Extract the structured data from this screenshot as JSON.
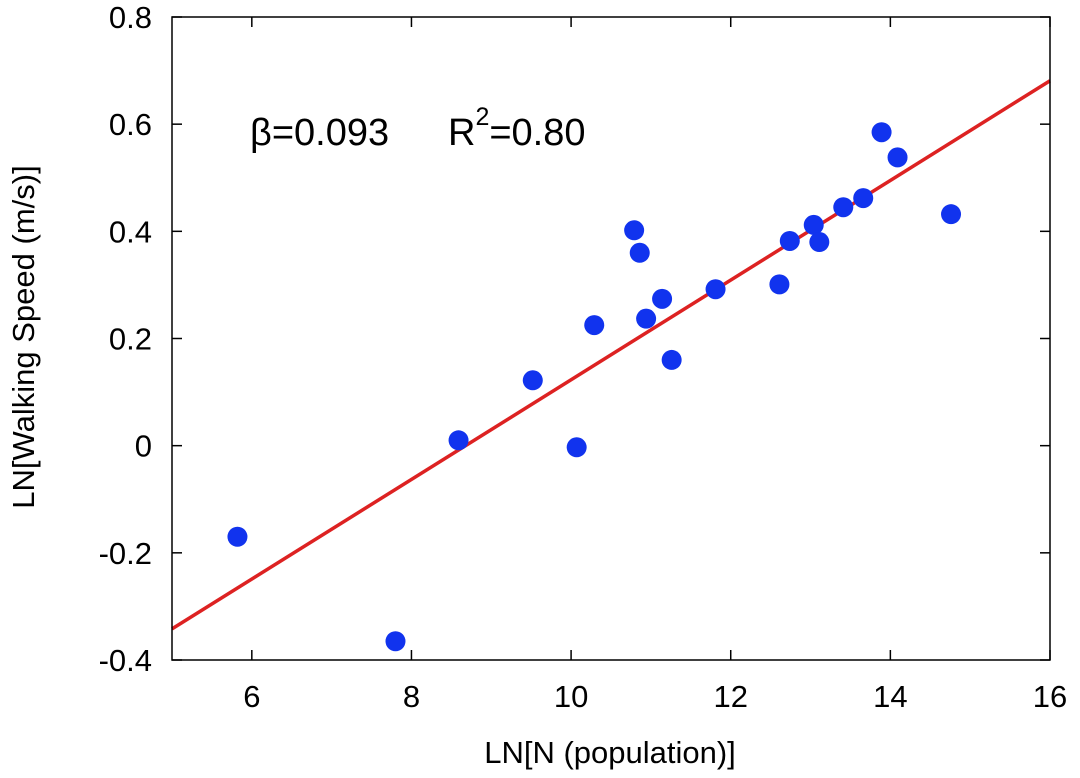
{
  "chart_data": {
    "type": "scatter",
    "xlabel": "LN[N (population)]",
    "ylabel": "LN[Walking Speed (m/s)]",
    "xlim": [
      5,
      16
    ],
    "ylim": [
      -0.4,
      0.8
    ],
    "xticks": [
      "6",
      "8",
      "10",
      "12",
      "14",
      "16"
    ],
    "yticks": [
      "-0.4",
      "-0.2",
      "0",
      "0.2",
      "0.4",
      "0.6",
      "0.8"
    ],
    "xtick_values": [
      6,
      8,
      10,
      12,
      14,
      16
    ],
    "ytick_values": [
      -0.4,
      -0.2,
      0,
      0.2,
      0.4,
      0.6,
      0.8
    ],
    "grid": false,
    "annotation": {
      "beta_text": "β=0.093",
      "r2_base": "R",
      "r2_sup": "2",
      "r2_value": "=0.80"
    },
    "points": {
      "color": "#1133ee",
      "x": [
        5.82,
        7.8,
        8.59,
        9.52,
        10.07,
        10.29,
        10.79,
        10.86,
        10.94,
        11.14,
        11.26,
        11.81,
        12.61,
        12.74,
        13.04,
        13.11,
        13.41,
        13.66,
        13.89,
        14.09,
        14.76
      ],
      "y": [
        -0.17,
        -0.365,
        0.01,
        0.122,
        -0.003,
        0.225,
        0.402,
        0.36,
        0.237,
        0.274,
        0.16,
        0.292,
        0.301,
        0.382,
        0.412,
        0.38,
        0.445,
        0.462,
        0.585,
        0.538,
        0.432
      ]
    },
    "fit_line": {
      "color": "#dd2222",
      "x": [
        5,
        16
      ],
      "y": [
        -0.342,
        0.681
      ]
    }
  }
}
